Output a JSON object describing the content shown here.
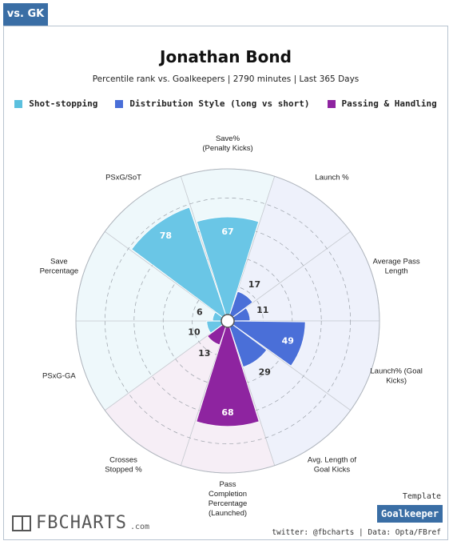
{
  "tab": {
    "label": "vs. GK"
  },
  "header": {
    "title": "Jonathan Bond",
    "subtitle": "Percentile rank vs. Goalkeepers | 2790 minutes | Last 365 Days"
  },
  "legend": [
    {
      "label": "Shot-stopping",
      "color": "#5bc0de"
    },
    {
      "label": "Distribution Style (long vs short)",
      "color": "#4a6fd8"
    },
    {
      "label": "Passing & Handling",
      "color": "#8e24a0"
    }
  ],
  "chart_data": {
    "type": "polar-bar",
    "scale": [
      0,
      100
    ],
    "grid": true,
    "categories": [
      {
        "name": "Save%\n(Penalty Kicks)",
        "value": 67,
        "group": "Shot-stopping"
      },
      {
        "name": "Launch %",
        "value": 17,
        "group": "Distribution Style (long vs short)"
      },
      {
        "name": "Average Pass\nLength",
        "value": 11,
        "group": "Distribution Style (long vs short)"
      },
      {
        "name": "Launch% (Goal\nKicks)",
        "value": 49,
        "group": "Distribution Style (long vs short)"
      },
      {
        "name": "Avg. Length of\nGoal Kicks",
        "value": 29,
        "group": "Distribution Style (long vs short)"
      },
      {
        "name": "Pass\nCompletion\nPercentage\n(Launched)",
        "value": 68,
        "group": "Passing & Handling"
      },
      {
        "name": "Crosses\nStopped %",
        "value": 13,
        "group": "Passing & Handling"
      },
      {
        "name": "PSxG-GA",
        "value": 10,
        "group": "Shot-stopping"
      },
      {
        "name": "Save\nPercentage",
        "value": 6,
        "group": "Shot-stopping"
      },
      {
        "name": "PSxG/SoT",
        "value": 78,
        "group": "Shot-stopping"
      }
    ],
    "group_colors": {
      "Shot-stopping": {
        "bar": "#6ac6e6",
        "bg": "#eef8fb"
      },
      "Distribution Style (long vs short)": {
        "bar": "#4a6fd8",
        "bg": "#eef1fb"
      },
      "Passing & Handling": {
        "bar": "#8e24a0",
        "bg": "#f6eef6"
      }
    }
  },
  "branding": {
    "logo_text": "FBCHARTS",
    "logo_suffix": ".com",
    "template_label": "Template",
    "template_name": "Goalkeeper",
    "footer": "twitter: @fbcharts | Data: Opta/FBref"
  }
}
